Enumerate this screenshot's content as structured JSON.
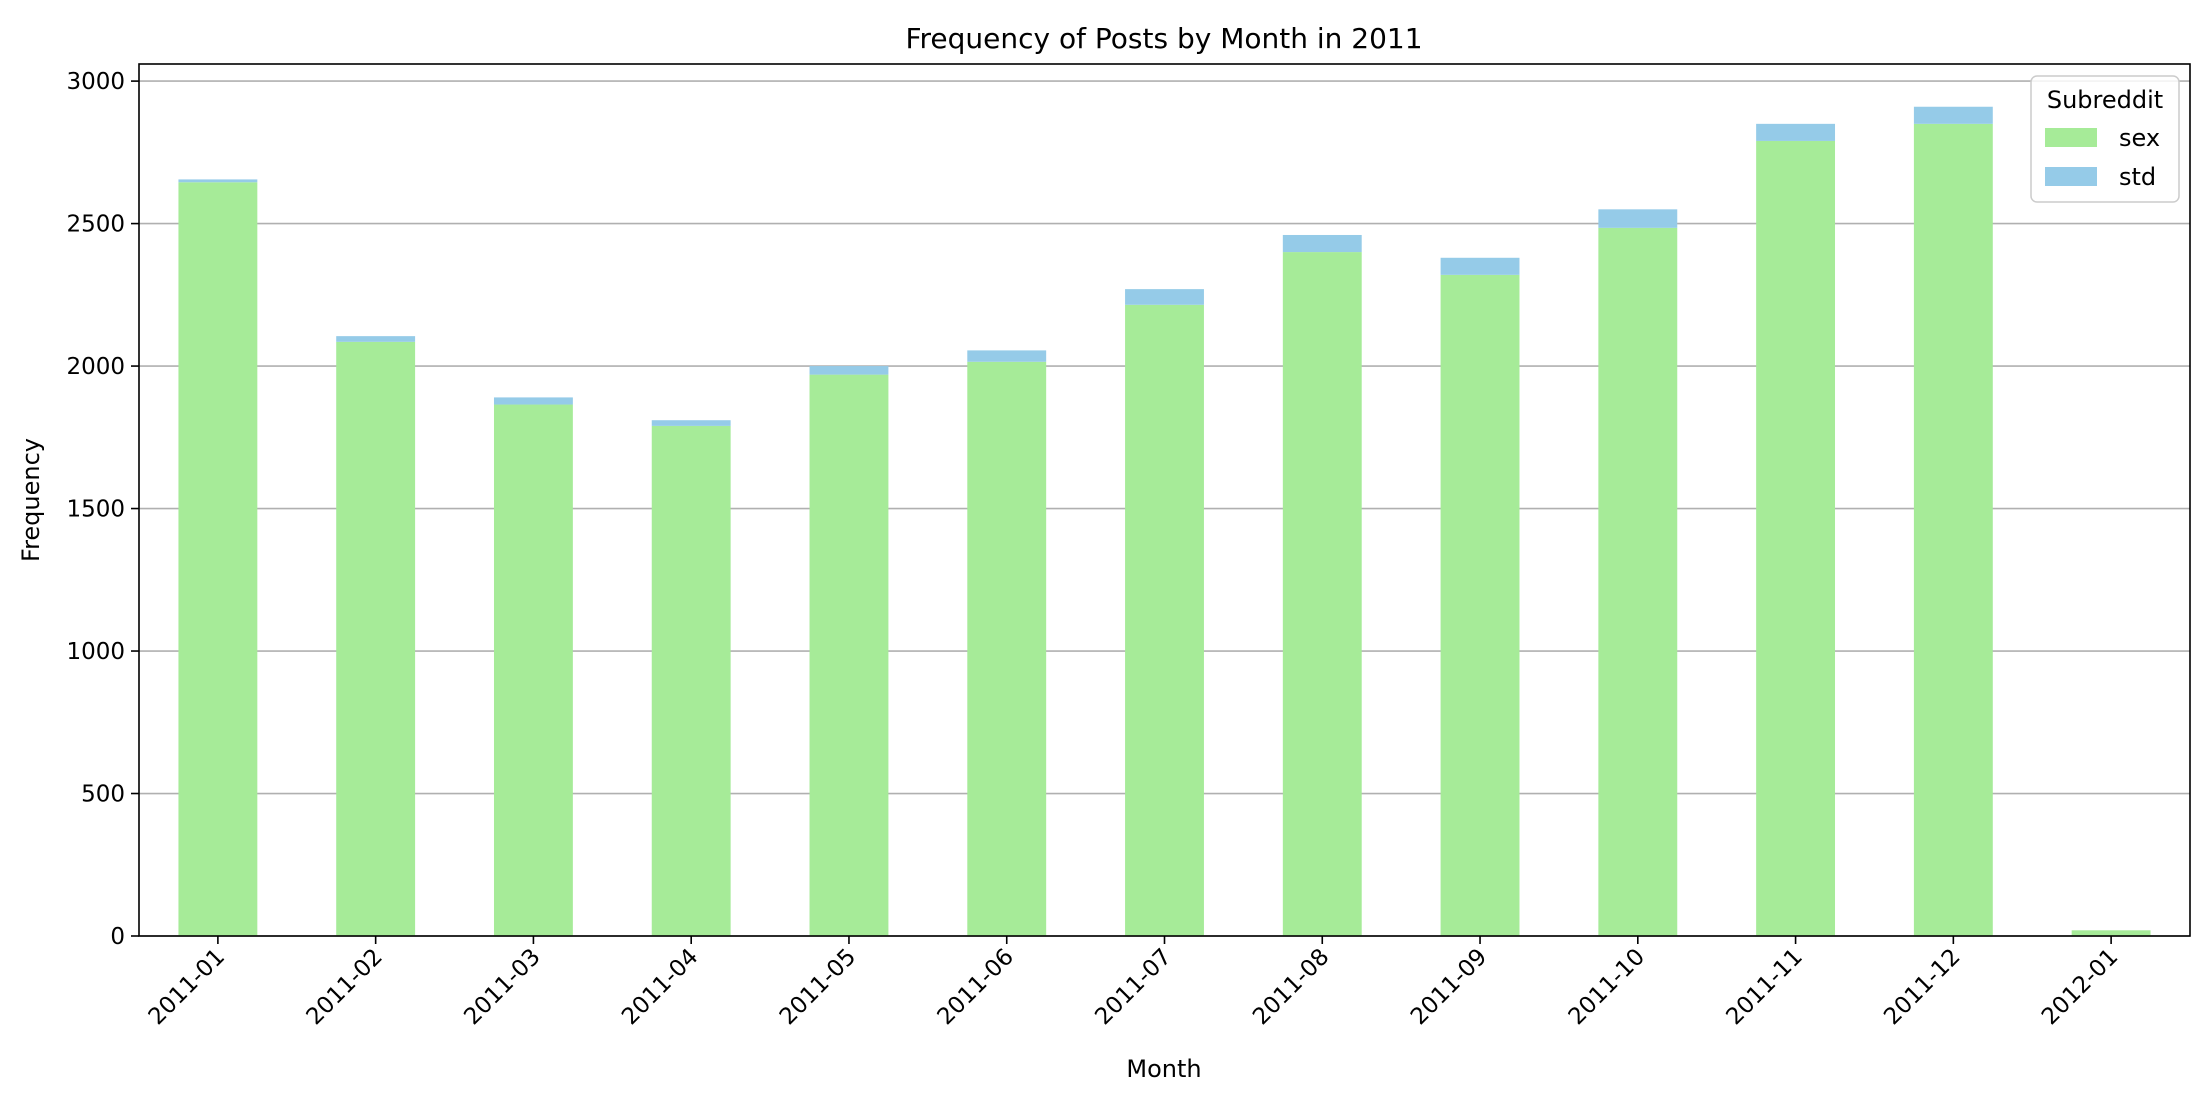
{
  "chart_data": {
    "type": "bar",
    "stacked": true,
    "title": "Frequency of Posts by Month in 2011",
    "xlabel": "Month",
    "ylabel": "Frequency",
    "categories": [
      "2011-01",
      "2011-02",
      "2011-03",
      "2011-04",
      "2011-05",
      "2011-06",
      "2011-07",
      "2011-08",
      "2011-09",
      "2011-10",
      "2011-11",
      "2011-12",
      "2012-01"
    ],
    "series": [
      {
        "name": "sex",
        "color": "#a6eb98",
        "values": [
          2645,
          2085,
          1865,
          1790,
          1970,
          2015,
          2215,
          2400,
          2320,
          2485,
          2790,
          2850,
          20
        ]
      },
      {
        "name": "std",
        "color": "#95cbe8",
        "values": [
          10,
          20,
          25,
          20,
          30,
          40,
          55,
          60,
          60,
          65,
          60,
          60,
          0
        ]
      }
    ],
    "ylim": [
      0,
      3060
    ],
    "yticks": [
      0,
      500,
      1000,
      1500,
      2000,
      2500,
      3000
    ],
    "grid": true,
    "grid_axis": "y",
    "legend": {
      "title": "Subreddit",
      "placement": "top-right"
    }
  }
}
